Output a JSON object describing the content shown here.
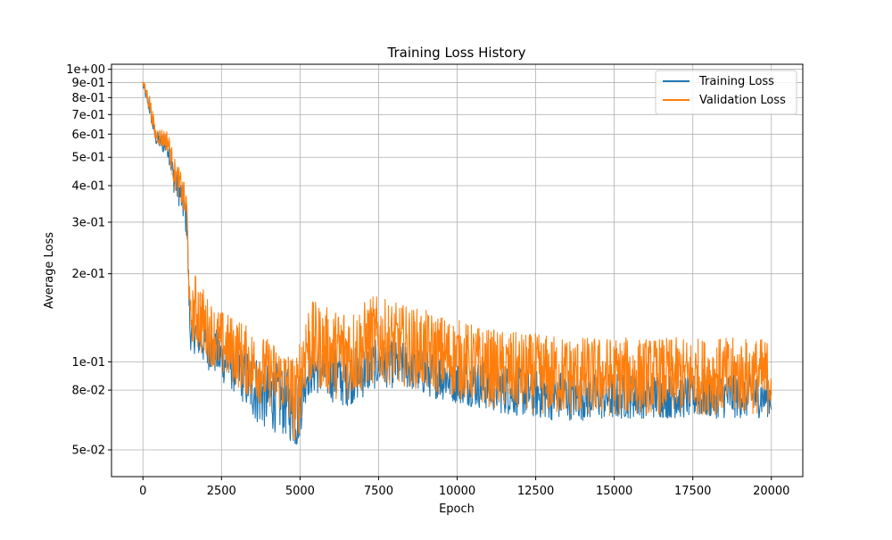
{
  "chart_data": {
    "type": "line",
    "title": "Training Loss History",
    "xlabel": "Epoch",
    "ylabel": "Average Loss",
    "xlim": [
      -1000,
      21000
    ],
    "ylim": [
      0.0405,
      1.04
    ],
    "yscale": "log",
    "grid": true,
    "legend_position": "top-right",
    "x_ticks": [
      {
        "value": 0,
        "label": "0"
      },
      {
        "value": 2500,
        "label": "2500"
      },
      {
        "value": 5000,
        "label": "5000"
      },
      {
        "value": 7500,
        "label": "7500"
      },
      {
        "value": 10000,
        "label": "10000"
      },
      {
        "value": 12500,
        "label": "12500"
      },
      {
        "value": 15000,
        "label": "15000"
      },
      {
        "value": 17500,
        "label": "17500"
      },
      {
        "value": 20000,
        "label": "20000"
      }
    ],
    "y_ticks": [
      {
        "value": 0.05,
        "label": "5e-02"
      },
      {
        "value": 0.08,
        "label": "8e-02"
      },
      {
        "value": 0.1,
        "label": "1e-01"
      },
      {
        "value": 0.2,
        "label": "2e-01"
      },
      {
        "value": 0.3,
        "label": "3e-01"
      },
      {
        "value": 0.4,
        "label": "4e-01"
      },
      {
        "value": 0.5,
        "label": "5e-01"
      },
      {
        "value": 0.6,
        "label": "6e-01"
      },
      {
        "value": 0.7,
        "label": "7e-01"
      },
      {
        "value": 0.8,
        "label": "8e-01"
      },
      {
        "value": 0.9,
        "label": "9e-01"
      },
      {
        "value": 1.0,
        "label": "1e+00"
      }
    ],
    "series": [
      {
        "name": "Training Loss",
        "color": "#1f77b4",
        "x": [
          0,
          200,
          400,
          600,
          800,
          1000,
          1200,
          1400,
          1500,
          1700,
          2000,
          2300,
          2500,
          2800,
          3100,
          3400,
          3700,
          4000,
          4300,
          4600,
          4900,
          5000,
          5200,
          5500,
          5800,
          6100,
          6400,
          6700,
          7000,
          7300,
          7600,
          8000,
          8500,
          9000,
          9500,
          10000,
          10500,
          11000,
          11500,
          12000,
          12500,
          13000,
          13500,
          14000,
          14500,
          15000,
          15500,
          16000,
          16500,
          17000,
          17500,
          18000,
          18500,
          19000,
          19500,
          20000
        ],
        "low": [
          0.86,
          0.7,
          0.55,
          0.52,
          0.5,
          0.37,
          0.33,
          0.26,
          0.11,
          0.105,
          0.095,
          0.09,
          0.085,
          0.08,
          0.075,
          0.065,
          0.06,
          0.058,
          0.057,
          0.055,
          0.049,
          0.055,
          0.075,
          0.078,
          0.075,
          0.072,
          0.07,
          0.072,
          0.075,
          0.08,
          0.082,
          0.081,
          0.08,
          0.076,
          0.074,
          0.072,
          0.07,
          0.068,
          0.066,
          0.065,
          0.064,
          0.063,
          0.063,
          0.063,
          0.063,
          0.063,
          0.064,
          0.064,
          0.064,
          0.064,
          0.064,
          0.064,
          0.064,
          0.064,
          0.064,
          0.065
        ],
        "high": [
          0.9,
          0.8,
          0.62,
          0.6,
          0.58,
          0.47,
          0.42,
          0.35,
          0.14,
          0.15,
          0.14,
          0.13,
          0.125,
          0.12,
          0.115,
          0.11,
          0.105,
          0.1,
          0.1,
          0.095,
          0.09,
          0.095,
          0.11,
          0.115,
          0.115,
          0.112,
          0.11,
          0.112,
          0.115,
          0.118,
          0.12,
          0.118,
          0.115,
          0.11,
          0.108,
          0.105,
          0.102,
          0.1,
          0.098,
          0.096,
          0.095,
          0.094,
          0.093,
          0.092,
          0.092,
          0.092,
          0.091,
          0.091,
          0.091,
          0.091,
          0.091,
          0.091,
          0.091,
          0.091,
          0.091,
          0.09
        ]
      },
      {
        "name": "Validation Loss",
        "color": "#ff7f0e",
        "x": [
          0,
          200,
          400,
          600,
          800,
          1000,
          1200,
          1400,
          1500,
          1700,
          2000,
          2300,
          2500,
          2800,
          3100,
          3400,
          3700,
          4000,
          4300,
          4600,
          4900,
          5000,
          5200,
          5500,
          5800,
          6100,
          6400,
          6700,
          7000,
          7300,
          7600,
          8000,
          8500,
          9000,
          9500,
          10000,
          10500,
          11000,
          11500,
          12000,
          12500,
          13000,
          13500,
          14000,
          14500,
          15000,
          15500,
          16000,
          16500,
          17000,
          17500,
          18000,
          18500,
          19000,
          19500,
          20000
        ],
        "low": [
          0.87,
          0.72,
          0.56,
          0.54,
          0.52,
          0.39,
          0.35,
          0.28,
          0.12,
          0.11,
          0.1,
          0.095,
          0.088,
          0.085,
          0.08,
          0.075,
          0.072,
          0.07,
          0.068,
          0.065,
          0.048,
          0.06,
          0.08,
          0.082,
          0.078,
          0.075,
          0.073,
          0.075,
          0.078,
          0.083,
          0.085,
          0.083,
          0.082,
          0.079,
          0.077,
          0.075,
          0.072,
          0.07,
          0.068,
          0.067,
          0.066,
          0.065,
          0.065,
          0.065,
          0.065,
          0.065,
          0.066,
          0.066,
          0.066,
          0.066,
          0.066,
          0.066,
          0.066,
          0.066,
          0.066,
          0.066
        ],
        "high": [
          0.92,
          0.84,
          0.64,
          0.63,
          0.62,
          0.5,
          0.45,
          0.38,
          0.16,
          0.21,
          0.17,
          0.155,
          0.15,
          0.145,
          0.14,
          0.13,
          0.125,
          0.12,
          0.115,
          0.11,
          0.105,
          0.13,
          0.165,
          0.16,
          0.155,
          0.15,
          0.16,
          0.155,
          0.16,
          0.17,
          0.165,
          0.16,
          0.155,
          0.15,
          0.145,
          0.14,
          0.135,
          0.13,
          0.128,
          0.126,
          0.125,
          0.124,
          0.123,
          0.122,
          0.122,
          0.122,
          0.121,
          0.121,
          0.121,
          0.121,
          0.121,
          0.121,
          0.121,
          0.121,
          0.121,
          0.12
        ]
      }
    ]
  }
}
